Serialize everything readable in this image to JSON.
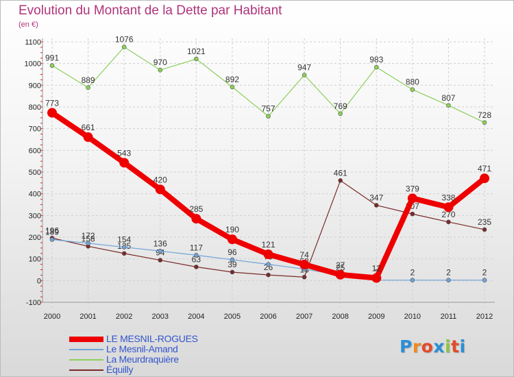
{
  "title": "Evolution du Montant de la Dette par Habitant",
  "subtitle": "(en €)",
  "logo": {
    "letters": [
      "P",
      "r",
      "o",
      "x",
      "i",
      "t",
      "i"
    ],
    "colors": [
      "#2a8fd6",
      "#f08a1c",
      "#e44a2a",
      "#2a8fd6",
      "#8cc63f",
      "#e44a2a",
      "#2a8fd6"
    ]
  },
  "chart_data": {
    "type": "line",
    "title": "Evolution du Montant de la Dette par Habitant",
    "ylabel": "(en €)",
    "xlabel": "",
    "categories": [
      "2000",
      "2001",
      "2002",
      "2003",
      "2004",
      "2005",
      "2006",
      "2007",
      "2008",
      "2009",
      "2010",
      "2011",
      "2012"
    ],
    "yticks": [
      "-100",
      "0",
      "100",
      "200",
      "300",
      "400",
      "500",
      "600",
      "700",
      "800",
      "900",
      "1000",
      "1100"
    ],
    "ylim": [
      -100,
      1100
    ],
    "grid": true,
    "legend_position": "bottom",
    "series": [
      {
        "name": "La Meurdraquière",
        "color": "#8ccf5a",
        "width": 1.2,
        "marker": 3,
        "labeled": true,
        "values": [
          991,
          889,
          1076,
          970,
          1021,
          892,
          757,
          947,
          769,
          983,
          880,
          807,
          728
        ],
        "labels": [
          "991",
          "889",
          "1076",
          "970",
          "1021",
          "892",
          "757",
          "947",
          "769",
          "983",
          "880",
          "807",
          "728"
        ]
      },
      {
        "name": "Équilly",
        "color": "#7a2a2a",
        "width": 1.2,
        "marker": 3,
        "labeled": true,
        "values": [
          196,
          158,
          125,
          94,
          63,
          39,
          26,
          16,
          461,
          347,
          307,
          270,
          235
        ],
        "labels": [
          "196",
          "158",
          "125",
          "94",
          "63",
          "39",
          "26",
          "16",
          "461",
          "347",
          "307",
          "270",
          "235"
        ]
      },
      {
        "name": "Le Mesnil-Amand",
        "color": "#6fa3d8",
        "width": 1.2,
        "marker": 3,
        "labeled": true,
        "values": [
          189,
          172,
          154,
          136,
          117,
          96,
          75,
          53,
          25,
          2,
          2,
          2,
          2
        ],
        "labels": [
          "189",
          "172",
          "154",
          "136",
          "117",
          "96",
          "75",
          "53",
          "25",
          "2",
          "2",
          "2",
          "2"
        ]
      },
      {
        "name": "LE MESNIL-ROGUES",
        "color": "#ee0000",
        "width": 8,
        "marker": 7,
        "labeled": true,
        "values": [
          773,
          661,
          543,
          420,
          285,
          190,
          121,
          74,
          27,
          12,
          379,
          338,
          471
        ],
        "labels": [
          "773",
          "661",
          "543",
          "420",
          "285",
          "190",
          "121",
          "74",
          "27",
          "12",
          "379",
          "338",
          "471"
        ]
      }
    ]
  },
  "legend": [
    {
      "label": "LE MESNIL-ROGUES",
      "color": "#ee0000",
      "thickness": 8
    },
    {
      "label": "Le Mesnil-Amand",
      "color": "#6fa3d8",
      "thickness": 2
    },
    {
      "label": "La Meurdraquière",
      "color": "#8ccf5a",
      "thickness": 2
    },
    {
      "label": "Équilly",
      "color": "#7a2a2a",
      "thickness": 2
    }
  ]
}
